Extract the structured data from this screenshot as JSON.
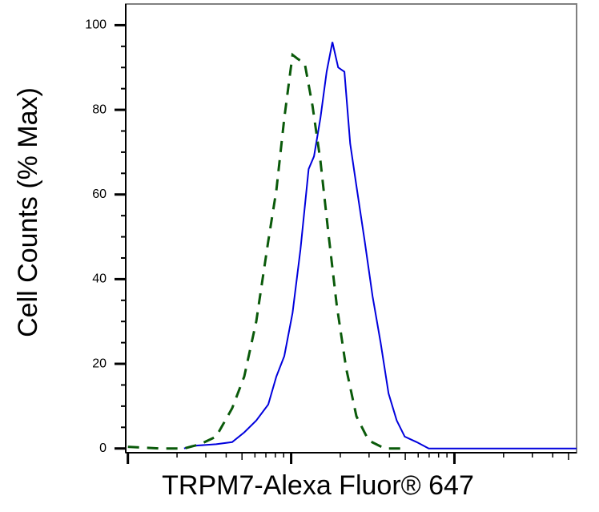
{
  "chart_data": {
    "type": "line",
    "x_label": "TRPM7-Alexa Fluor® 647",
    "y_label": "Cell Counts (% Max)",
    "xscale": "log",
    "xlim": [
      0.97,
      560
    ],
    "xticks": [
      1,
      10,
      100
    ],
    "ylim": [
      -1,
      105
    ],
    "yticks": [
      0,
      20,
      40,
      60,
      80,
      100
    ],
    "series": [
      {
        "color": "#0000dd",
        "dash": false,
        "x": [
          2.21,
          2.47,
          3.47,
          4.35,
          5.16,
          6.11,
          7.24,
          8.12,
          9.08,
          10.2,
          11.4,
          12.8,
          13.8,
          15.1,
          16.5,
          17.9,
          19.4,
          21.2,
          23.0,
          25.1,
          28.2,
          31.5,
          35.3,
          39.5,
          44.3,
          49.6,
          58.8,
          69.6,
          560
        ],
        "values": [
          0,
          0.6,
          1,
          1.5,
          3.8,
          6.6,
          10.4,
          17,
          21.8,
          32,
          47,
          66,
          69,
          78,
          89,
          96,
          90,
          89,
          72,
          62,
          49,
          36,
          25,
          13,
          6.6,
          2.8,
          1.5,
          0,
          0
        ]
      },
      {
        "color": "#0a5a0a",
        "dash": true,
        "x": [
          1.0,
          1.57,
          2.21,
          2.77,
          3.47,
          4.35,
          5.16,
          6.11,
          7.24,
          8.12,
          9.08,
          10.2,
          11.0,
          12.1,
          13.5,
          15.1,
          16.9,
          19.0,
          21.7,
          25.1,
          29.8,
          37.4,
          46.9
        ],
        "values": [
          0.4,
          0,
          0,
          1,
          2.8,
          9.5,
          17,
          30,
          49,
          61,
          78,
          93,
          92,
          91,
          81,
          68,
          51,
          34,
          19,
          7.6,
          1.9,
          0,
          0
        ]
      }
    ]
  }
}
